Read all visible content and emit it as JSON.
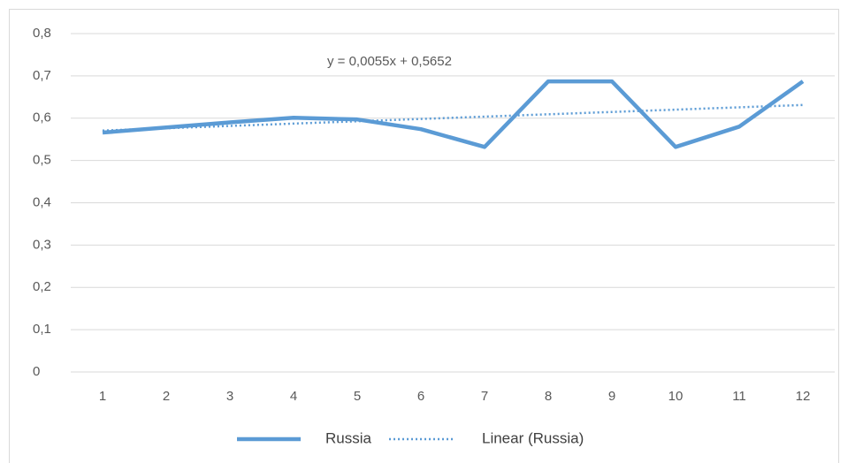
{
  "chart_data": {
    "type": "line",
    "categories": [
      "1",
      "2",
      "3",
      "4",
      "5",
      "6",
      "7",
      "8",
      "9",
      "10",
      "11",
      "12"
    ],
    "series": [
      {
        "name": "Russia",
        "color": "#5b9bd5",
        "style": "solid",
        "values": [
          0.566,
          0.578,
          0.59,
          0.601,
          0.597,
          0.574,
          0.532,
          0.687,
          0.687,
          0.532,
          0.58,
          0.687
        ]
      },
      {
        "name": "Linear (Russia)",
        "color": "#5b9bd5",
        "style": "dotted",
        "values": [
          0.5707,
          0.5762,
          0.5817,
          0.5872,
          0.5927,
          0.5982,
          0.6037,
          0.6092,
          0.6147,
          0.6202,
          0.6257,
          0.6312
        ]
      }
    ],
    "annotation": "y = 0,0055x + 0,5652",
    "ylim": [
      0,
      0.8
    ],
    "yticks": [
      0,
      {
        "value": 0.1,
        "label": "0,1"
      },
      {
        "value": 0.2,
        "label": "0,2"
      },
      {
        "value": 0.3,
        "label": "0,3"
      },
      {
        "value": 0.4,
        "label": "0,4"
      },
      {
        "value": 0.5,
        "label": "0,5"
      },
      {
        "value": 0.6,
        "label": "0,6"
      },
      {
        "value": 0.7,
        "label": "0,7"
      },
      {
        "value": 0.8,
        "label": "0,8"
      }
    ],
    "grid": true,
    "legend": "bottom"
  }
}
